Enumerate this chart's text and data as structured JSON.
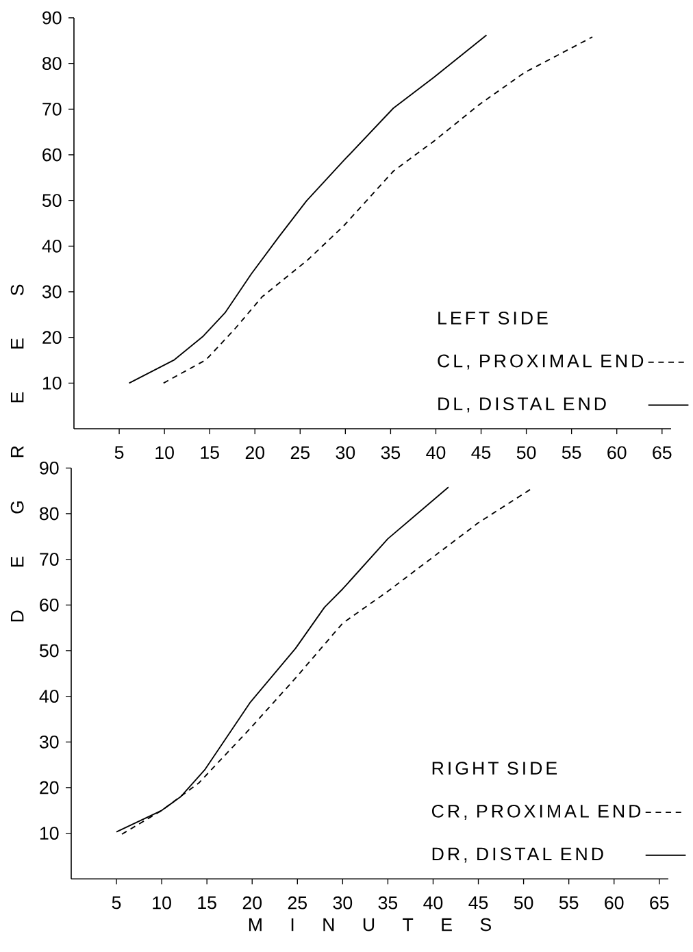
{
  "chart_data": [
    {
      "type": "line",
      "ylabel": "D E G R E E S",
      "legend_title": "LEFT SIDE",
      "legend": "bottom right",
      "xlim": [
        0,
        66
      ],
      "ylim": [
        0,
        90
      ],
      "xticks": [
        5,
        10,
        15,
        20,
        25,
        30,
        35,
        40,
        45,
        50,
        55,
        60,
        65
      ],
      "yticks": [
        10,
        20,
        30,
        40,
        50,
        60,
        70,
        80,
        90
      ],
      "series": [
        {
          "name": "CL, PROXIMAL END",
          "color": "#000000",
          "line_style": "dashed",
          "x": [
            9.9,
            14.6,
            17.8,
            20.8,
            25.8,
            29.8,
            35.3,
            39.8,
            44.8,
            49.8,
            57.3
          ],
          "values": [
            10,
            15.1,
            21.9,
            28.9,
            36.9,
            44.4,
            56.4,
            63,
            71,
            78,
            85.8
          ]
        },
        {
          "name": "DL, DISTAL END",
          "color": "#000000",
          "line_style": "solid",
          "x": [
            6.1,
            11.1,
            14.3,
            16.7,
            19.6,
            22.6,
            25.7,
            29.8,
            35.3,
            39.8,
            45.6
          ],
          "values": [
            10,
            15.1,
            20.3,
            25.4,
            33.9,
            41.9,
            49.9,
            58.7,
            70.2,
            77,
            86.2
          ]
        }
      ]
    },
    {
      "type": "line",
      "xlabel": "M I N U T E S",
      "legend_title": "RIGHT SIDE",
      "legend": "bottom right",
      "xlim": [
        0,
        66
      ],
      "ylim": [
        0,
        90
      ],
      "xticks": [
        5,
        10,
        15,
        20,
        25,
        30,
        35,
        40,
        45,
        50,
        55,
        60,
        65
      ],
      "yticks": [
        10,
        20,
        30,
        40,
        50,
        60,
        70,
        80,
        90
      ],
      "series": [
        {
          "name": "CR, PROXIMAL END",
          "color": "#000000",
          "line_style": "dashed",
          "x": [
            5.6,
            10,
            14.1,
            19.8,
            24.8,
            30,
            35,
            40,
            45,
            50.9
          ],
          "values": [
            9.8,
            15,
            21,
            33,
            44,
            56,
            63,
            70.5,
            78,
            85.5
          ]
        },
        {
          "name": "DR, DISTAL END",
          "color": "#000000",
          "line_style": "solid",
          "x": [
            5,
            10,
            12.1,
            14.8,
            19.8,
            24.8,
            28,
            30,
            35,
            41.7
          ],
          "values": [
            10.3,
            15,
            18,
            24,
            38.7,
            50.5,
            59.5,
            63.5,
            74.5,
            85.8
          ]
        }
      ]
    }
  ]
}
